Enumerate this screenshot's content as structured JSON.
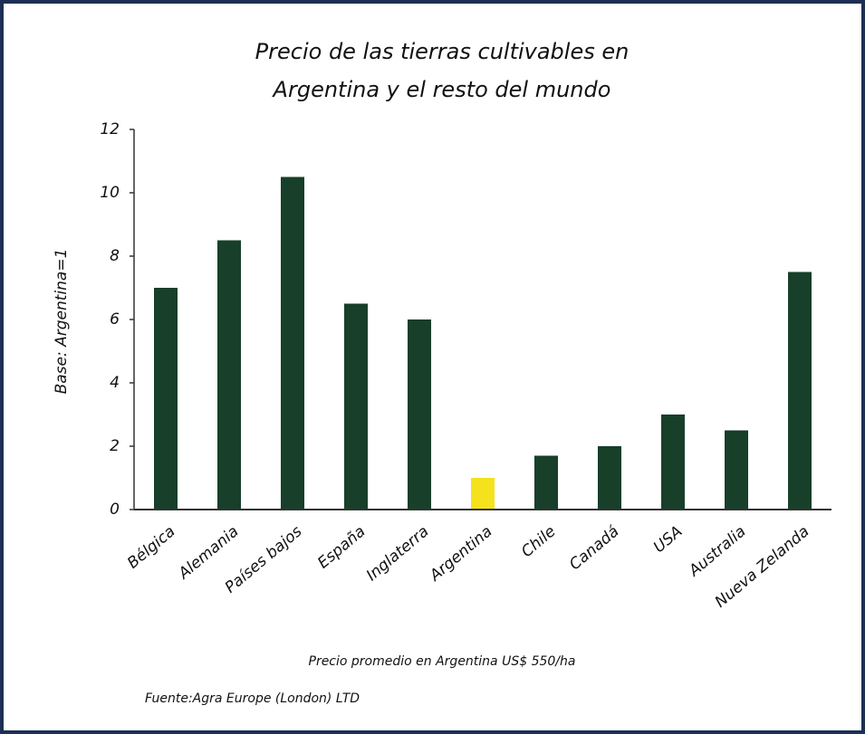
{
  "chart_data": {
    "type": "bar",
    "title": [
      "Precio de las tierras cultivables en",
      "Argentina y el resto del mundo"
    ],
    "y_label": "Base: Argentina=1",
    "categories": [
      "Bélgica",
      "Alemania",
      "Países bajos",
      "España",
      "Inglaterra",
      "Argentina",
      "Chile",
      "Canadá",
      "USA",
      "Australia",
      "Nueva Zelanda"
    ],
    "values": [
      7,
      8.5,
      10.5,
      6.5,
      6,
      1,
      1.7,
      2,
      3,
      2.5,
      7.5
    ],
    "colors": [
      "#173f2a",
      "#173f2a",
      "#173f2a",
      "#173f2a",
      "#173f2a",
      "#f4e21c",
      "#173f2a",
      "#173f2a",
      "#173f2a",
      "#173f2a",
      "#173f2a"
    ],
    "ylim": [
      0,
      12
    ],
    "yticks": [
      0,
      2,
      4,
      6,
      8,
      10,
      12
    ],
    "notes": [
      "Precio promedio en Argentina US$ 550/ha",
      "Fuente:Agra Europe (London) LTD"
    ]
  }
}
